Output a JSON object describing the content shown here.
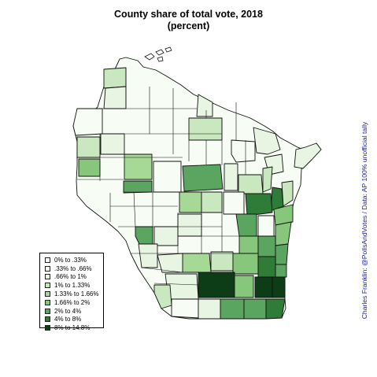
{
  "title": "County share of total vote, 2018",
  "subtitle": "(percent)",
  "credit": "Charles Franklin: @PollsAndVotes / Data: AP 100% unofficial tally",
  "legend": [
    {
      "label": "0% to .33%",
      "color": "#f7fcf5"
    },
    {
      "label": ".33% to .66%",
      "color": "#f7fcf5"
    },
    {
      "label": ".66% to 1%",
      "color": "#e8f5e2"
    },
    {
      "label": "1% to 1.33%",
      "color": "#c9e8bf"
    },
    {
      "label": "1.33% to 1.66%",
      "color": "#a6d896"
    },
    {
      "label": "1.66% to 2%",
      "color": "#87c77c"
    },
    {
      "label": "2% to 4%",
      "color": "#5aa55f"
    },
    {
      "label": "4% to 8%",
      "color": "#2f7b38"
    },
    {
      "label": "8% to 14.8%",
      "color": "#0d3d17"
    }
  ]
}
